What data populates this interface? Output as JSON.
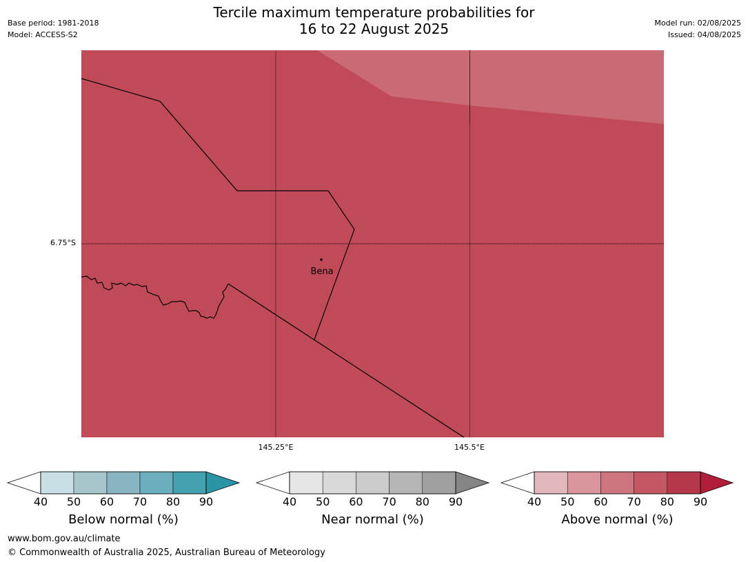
{
  "title_line1": "Tercile maximum temperature probabilities for",
  "title_line2": "16 to 22 August 2025",
  "base_period": "Base period: 1981-2018",
  "model": "Model: ACCESS-S2",
  "model_run": "Model run: 02/08/2025",
  "issued": "Issued: 04/08/2025",
  "map": {
    "lat_label": "6.75°S",
    "lon_labels": [
      "145.25°E",
      "145.5°E"
    ],
    "places": [
      {
        "name": "Bena"
      }
    ],
    "colors": {
      "above_80_90": "#c04a57",
      "above_70_80": "#ca6a74",
      "boundary": "#000000"
    }
  },
  "colorbars": [
    {
      "name": "below",
      "label": "Below normal (%)",
      "ticks": [
        "40",
        "50",
        "60",
        "70",
        "80",
        "90"
      ],
      "colors": [
        "#ffffff",
        "#c9e1e6",
        "#a7c6cc",
        "#89b5c2",
        "#6baebd",
        "#45a0b0",
        "#2b95a6"
      ]
    },
    {
      "name": "near",
      "label": "Near normal (%)",
      "ticks": [
        "40",
        "50",
        "60",
        "70",
        "80",
        "90"
      ],
      "colors": [
        "#ffffff",
        "#e6e6e6",
        "#d9d9d9",
        "#cccccc",
        "#b5b5b5",
        "#a0a0a0",
        "#858585"
      ]
    },
    {
      "name": "above",
      "label": "Above normal (%)",
      "ticks": [
        "40",
        "50",
        "60",
        "70",
        "80",
        "90"
      ],
      "colors": [
        "#ffffff",
        "#e2b8bd",
        "#d8959c",
        "#cc757e",
        "#c35863",
        "#b5384a",
        "#b01e3a"
      ]
    }
  ],
  "footer": {
    "url": "www.bom.gov.au/climate",
    "copyright": "© Commonwealth of Australia 2025, Australian Bureau of Meteorology"
  }
}
